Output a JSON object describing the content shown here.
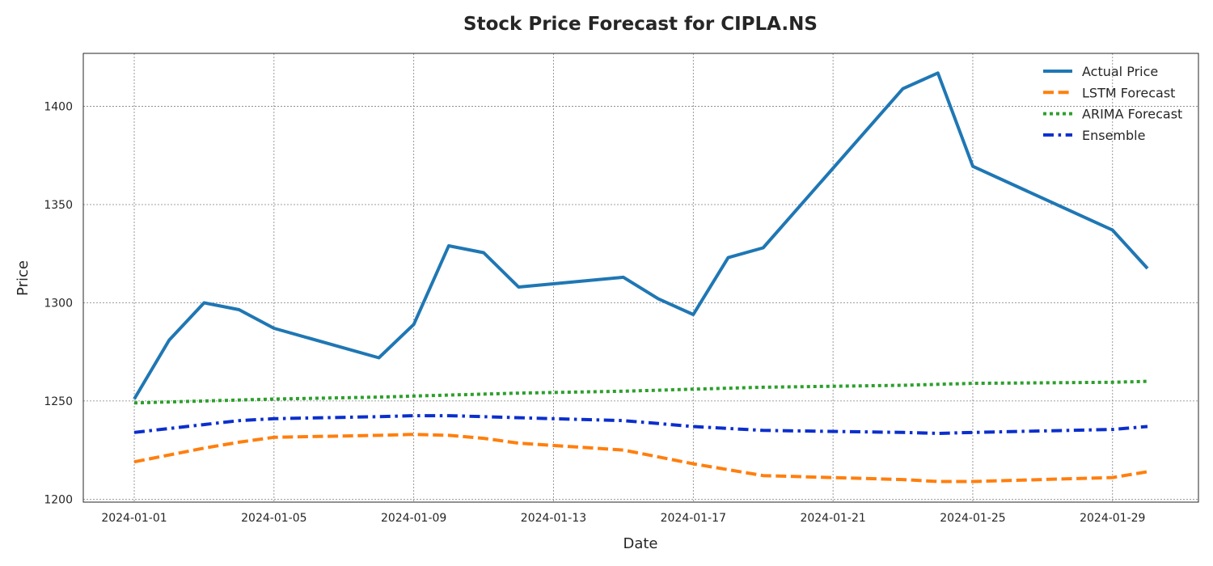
{
  "chart_data": {
    "type": "line",
    "title": "Stock Price Forecast for CIPLA.NS",
    "xlabel": "Date",
    "ylabel": "Price",
    "x_ticks": [
      "2024-01-01",
      "2024-01-05",
      "2024-01-09",
      "2024-01-13",
      "2024-01-17",
      "2024-01-21",
      "2024-01-25",
      "2024-01-29"
    ],
    "y_ticks": [
      1200,
      1250,
      1300,
      1350,
      1400
    ],
    "xlim": [
      "2023-12-30T13:00",
      "2024-01-31T11:00"
    ],
    "ylim": [
      1198.5,
      1427
    ],
    "grid": true,
    "legend_position": "top-right",
    "series": [
      {
        "name": "Actual Price",
        "color": "#1f77b4",
        "style": "solid",
        "points": [
          [
            "2024-01-01",
            1251
          ],
          [
            "2024-01-02",
            1281
          ],
          [
            "2024-01-03",
            1300
          ],
          [
            "2024-01-04",
            1296.5
          ],
          [
            "2024-01-05",
            1287
          ],
          [
            "2024-01-08",
            1272
          ],
          [
            "2024-01-09",
            1289
          ],
          [
            "2024-01-10",
            1329
          ],
          [
            "2024-01-11",
            1325.5
          ],
          [
            "2024-01-12",
            1308
          ],
          [
            "2024-01-15",
            1313
          ],
          [
            "2024-01-16",
            1302
          ],
          [
            "2024-01-17",
            1294
          ],
          [
            "2024-01-18",
            1323
          ],
          [
            "2024-01-19",
            1328
          ],
          [
            "2024-01-23",
            1409
          ],
          [
            "2024-01-24",
            1417
          ],
          [
            "2024-01-25",
            1369.5
          ],
          [
            "2024-01-29",
            1337
          ],
          [
            "2024-01-30",
            1317.5
          ]
        ]
      },
      {
        "name": "LSTM Forecast",
        "color": "#ff7f0e",
        "style": "dashed",
        "points": [
          [
            "2024-01-01",
            1219
          ],
          [
            "2024-01-02",
            1222.5
          ],
          [
            "2024-01-03",
            1226
          ],
          [
            "2024-01-04",
            1229
          ],
          [
            "2024-01-05",
            1231.5
          ],
          [
            "2024-01-08",
            1232.5
          ],
          [
            "2024-01-09",
            1233
          ],
          [
            "2024-01-10",
            1232.5
          ],
          [
            "2024-01-11",
            1231
          ],
          [
            "2024-01-12",
            1228.5
          ],
          [
            "2024-01-15",
            1225
          ],
          [
            "2024-01-16",
            1221.5
          ],
          [
            "2024-01-17",
            1218
          ],
          [
            "2024-01-18",
            1215
          ],
          [
            "2024-01-19",
            1212
          ],
          [
            "2024-01-23",
            1210
          ],
          [
            "2024-01-24",
            1209
          ],
          [
            "2024-01-25",
            1209
          ],
          [
            "2024-01-29",
            1211
          ],
          [
            "2024-01-30",
            1214
          ]
        ]
      },
      {
        "name": "ARIMA Forecast",
        "color": "#2ca02c",
        "style": "dotted",
        "points": [
          [
            "2024-01-01",
            1249
          ],
          [
            "2024-01-02",
            1249.5
          ],
          [
            "2024-01-03",
            1250
          ],
          [
            "2024-01-04",
            1250.5
          ],
          [
            "2024-01-05",
            1251
          ],
          [
            "2024-01-08",
            1252
          ],
          [
            "2024-01-09",
            1252.5
          ],
          [
            "2024-01-10",
            1253
          ],
          [
            "2024-01-11",
            1253.5
          ],
          [
            "2024-01-12",
            1254
          ],
          [
            "2024-01-15",
            1255
          ],
          [
            "2024-01-16",
            1255.5
          ],
          [
            "2024-01-17",
            1256
          ],
          [
            "2024-01-18",
            1256.5
          ],
          [
            "2024-01-19",
            1257
          ],
          [
            "2024-01-23",
            1258
          ],
          [
            "2024-01-24",
            1258.5
          ],
          [
            "2024-01-25",
            1259
          ],
          [
            "2024-01-29",
            1259.5
          ],
          [
            "2024-01-30",
            1260
          ]
        ]
      },
      {
        "name": "Ensemble",
        "color": "#0b2fcc",
        "style": "dashdot",
        "points": [
          [
            "2024-01-01",
            1234
          ],
          [
            "2024-01-02",
            1236
          ],
          [
            "2024-01-03",
            1238
          ],
          [
            "2024-01-04",
            1240
          ],
          [
            "2024-01-05",
            1241
          ],
          [
            "2024-01-08",
            1242
          ],
          [
            "2024-01-09",
            1242.5
          ],
          [
            "2024-01-10",
            1242.5
          ],
          [
            "2024-01-11",
            1242
          ],
          [
            "2024-01-12",
            1241.5
          ],
          [
            "2024-01-15",
            1240
          ],
          [
            "2024-01-16",
            1238.5
          ],
          [
            "2024-01-17",
            1237
          ],
          [
            "2024-01-18",
            1236
          ],
          [
            "2024-01-19",
            1235
          ],
          [
            "2024-01-23",
            1234
          ],
          [
            "2024-01-24",
            1233.5
          ],
          [
            "2024-01-25",
            1234
          ],
          [
            "2024-01-29",
            1235.5
          ],
          [
            "2024-01-30",
            1237
          ]
        ]
      }
    ]
  }
}
